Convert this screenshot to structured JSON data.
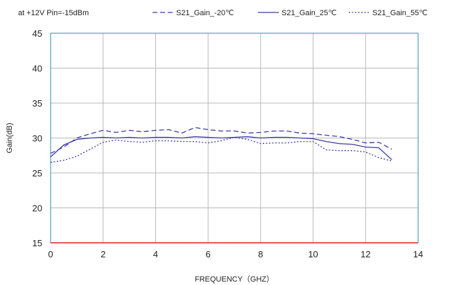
{
  "chart_data": {
    "type": "line",
    "title": "",
    "condition_label": "at +12V  Pin=-15dBm",
    "xlabel": "FREQUENCY（GHZ）",
    "ylabel": "Gain(dB)",
    "xlim": [
      0,
      14
    ],
    "ylim": [
      15,
      45
    ],
    "xticks": [
      0,
      2,
      4,
      6,
      8,
      10,
      12,
      14
    ],
    "yticks": [
      15,
      20,
      25,
      30,
      35,
      40,
      45
    ],
    "grid": true,
    "legend_position": "top",
    "baseline_color": "#d62020",
    "axis_color": "#2a8fa8",
    "series": [
      {
        "name": "S21_Gain_-20℃",
        "style": "dashed",
        "color": "#3a3aa8",
        "x": [
          0,
          0.5,
          1,
          1.5,
          2,
          2.5,
          3,
          3.5,
          4,
          4.5,
          5,
          5.5,
          6,
          6.5,
          7,
          7.5,
          8,
          8.5,
          9,
          9.5,
          10,
          10.5,
          11,
          11.5,
          12,
          12.5,
          13
        ],
        "y": [
          27.8,
          28.7,
          30.0,
          30.6,
          31.1,
          30.8,
          31.1,
          30.9,
          31.1,
          31.2,
          30.7,
          31.5,
          31.2,
          31.0,
          31.0,
          30.7,
          30.8,
          31.0,
          31.0,
          30.7,
          30.6,
          30.4,
          30.2,
          29.8,
          29.3,
          29.4,
          28.4
        ]
      },
      {
        "name": "S21_Gain_25℃",
        "style": "solid",
        "color": "#3a3aa8",
        "x": [
          0,
          0.5,
          1,
          1.5,
          2,
          2.5,
          3,
          3.5,
          4,
          4.5,
          5,
          5.5,
          6,
          6.5,
          7,
          7.5,
          8,
          8.5,
          9,
          9.5,
          10,
          10.5,
          11,
          11.5,
          12,
          12.5,
          13
        ],
        "y": [
          27.3,
          29.0,
          29.8,
          30.0,
          30.1,
          30.0,
          30.1,
          30.0,
          30.1,
          30.1,
          30.0,
          30.2,
          30.1,
          30.0,
          30.1,
          30.2,
          30.0,
          30.1,
          30.1,
          30.0,
          29.9,
          29.5,
          29.2,
          29.1,
          28.7,
          28.6,
          26.9
        ]
      },
      {
        "name": "S21_Gain_55℃",
        "style": "dotted",
        "color": "#3a3aa8",
        "x": [
          0,
          0.5,
          1,
          1.5,
          2,
          2.5,
          3,
          3.5,
          4,
          4.5,
          5,
          5.5,
          6,
          6.5,
          7,
          7.5,
          8,
          8.5,
          9,
          9.5,
          10,
          10.5,
          11,
          11.5,
          12,
          12.5,
          13
        ],
        "y": [
          26.5,
          26.8,
          27.4,
          28.4,
          29.4,
          29.7,
          29.5,
          29.4,
          29.6,
          29.6,
          29.5,
          29.5,
          29.3,
          29.6,
          30.1,
          29.8,
          29.2,
          29.3,
          29.3,
          29.5,
          29.5,
          28.3,
          28.2,
          28.2,
          28.0,
          27.2,
          26.7
        ]
      }
    ]
  }
}
